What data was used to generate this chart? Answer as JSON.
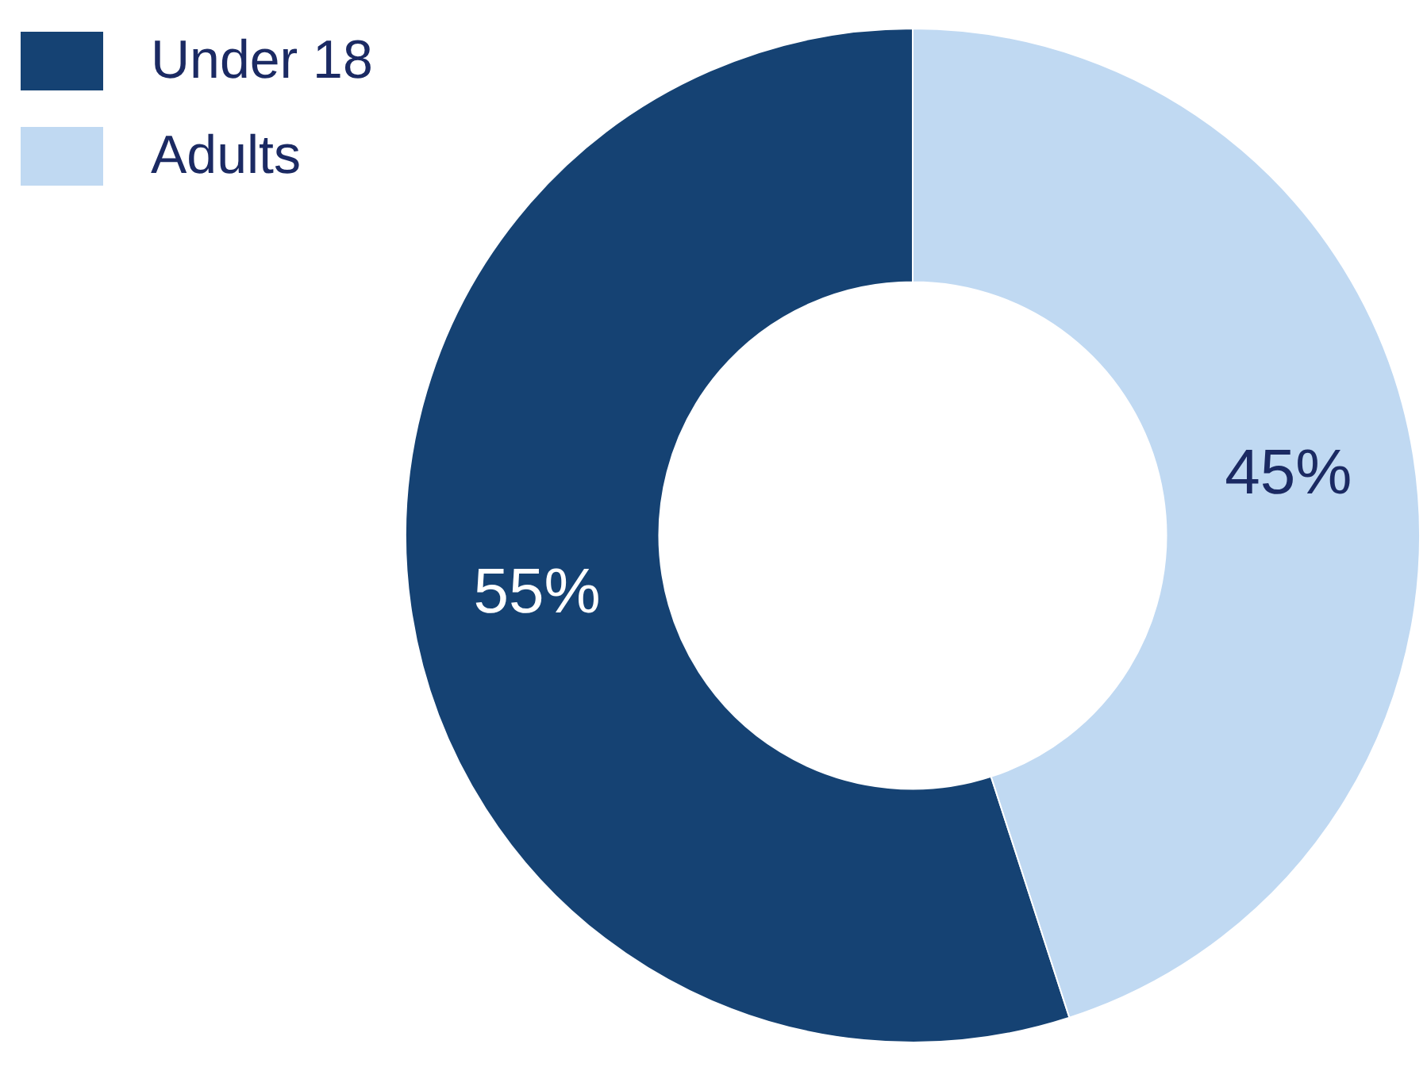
{
  "chart_data": {
    "type": "donut",
    "categories": [
      "Under 18",
      "Adults"
    ],
    "values": [
      55,
      45
    ],
    "colors": [
      "#154273",
      "#c0d9f2"
    ],
    "value_labels": [
      "55%",
      "45%"
    ],
    "legend": "top left"
  }
}
